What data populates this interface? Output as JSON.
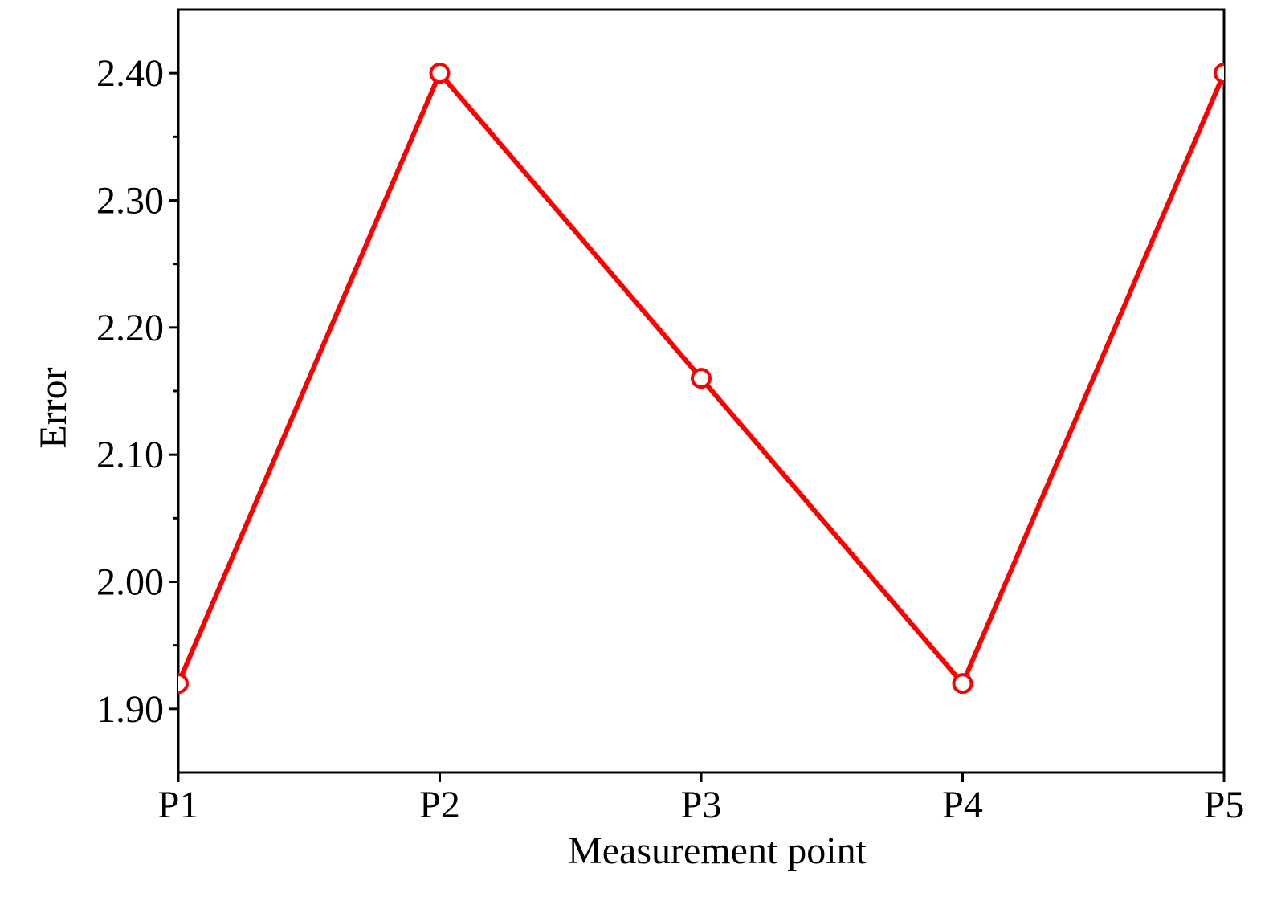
{
  "chart_data": {
    "type": "line",
    "categories": [
      "P1",
      "P2",
      "P3",
      "P4",
      "P5"
    ],
    "series": [
      {
        "values": [
          1.92,
          2.4,
          2.16,
          1.92,
          2.4
        ],
        "color": "#ff0000"
      }
    ],
    "xlabel": "Measurement point",
    "ylabel": "Error",
    "ylim": [
      1.85,
      2.45
    ],
    "yticks": [
      "1.90",
      "2.00",
      "2.10",
      "2.20",
      "2.30",
      "2.40"
    ],
    "grid": false,
    "legend": "none"
  }
}
